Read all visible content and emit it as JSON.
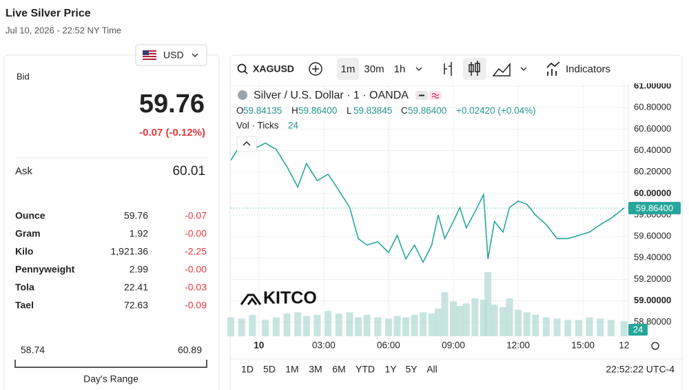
{
  "header": {
    "title": "Live Silver Price",
    "timestamp": "Jul 10, 2026 - 22:52 NY Time"
  },
  "currency": "USD",
  "quote": {
    "bid_label": "Bid",
    "bid": "59.76",
    "change": "-0.07 (-0.12%)",
    "ask_label": "Ask",
    "ask": "60.01"
  },
  "units": {
    "rows": [
      [
        "Ounce",
        "59.76",
        "-0.07"
      ],
      [
        "Gram",
        "1.92",
        "-0.00"
      ],
      [
        "Kilo",
        "1,921.36",
        "-2.25"
      ],
      [
        "Pennyweight",
        "2.99",
        "-0.00"
      ],
      [
        "Tola",
        "22.41",
        "-0.03"
      ],
      [
        "Tael",
        "72.63",
        "-0.09"
      ]
    ]
  },
  "day_range": {
    "low": "58.74",
    "high": "60.89",
    "label": "Day's Range"
  },
  "toolbar": {
    "symbol": "XAGUSD",
    "intervals": [
      "1m",
      "30m",
      "1h"
    ],
    "indicators": "Indicators"
  },
  "ranges": [
    "1D",
    "5D",
    "1M",
    "3M",
    "6M",
    "YTD",
    "1Y",
    "5Y",
    "All"
  ],
  "clock": "22:52:22 UTC-4",
  "watermark": "KITCO",
  "chart_data": {
    "type": "line",
    "title": "Silver / U.S. Dollar · 1 · OANDA",
    "ohlc": [
      {
        "label": "O",
        "value": "59.84135"
      },
      {
        "label": "H",
        "value": "59.86400"
      },
      {
        "label": "L",
        "value": "59.83845"
      },
      {
        "label": "C",
        "value": "59.86400"
      }
    ],
    "change": "+0.02420 (+0.04%)",
    "volume_title": "Vol · Ticks",
    "last_label": "59.86400",
    "x": [
      -1.3,
      -0.8,
      -0.3,
      0.3,
      0.8,
      1.3,
      1.8,
      2.2,
      2.7,
      3.2,
      3.7,
      4.2,
      4.6,
      5.0,
      5.5,
      6.0,
      6.4,
      6.8,
      7.2,
      7.6,
      8.0,
      8.3,
      8.6,
      9.0,
      9.3,
      9.6,
      10.0,
      10.4,
      10.6,
      10.9,
      11.3,
      11.6,
      12.0,
      12.4,
      12.8,
      13.3,
      13.8,
      14.3,
      14.8,
      15.3,
      15.8,
      16.3,
      16.9
    ],
    "series": [
      {
        "color": "#26a69a",
        "values": [
          60.31,
          60.47,
          60.41,
          60.47,
          60.41,
          60.25,
          60.06,
          60.28,
          60.12,
          60.18,
          60.03,
          59.87,
          59.58,
          59.52,
          59.55,
          59.45,
          59.61,
          59.39,
          59.52,
          59.36,
          59.52,
          59.8,
          59.58,
          59.74,
          59.87,
          59.68,
          59.83,
          59.99,
          59.39,
          59.74,
          59.64,
          59.87,
          59.93,
          59.9,
          59.8,
          59.71,
          59.58,
          59.58,
          59.61,
          59.64,
          59.71,
          59.77,
          59.864
        ]
      },
      {
        "axis": "y2",
        "color": "#b9ddd8",
        "values": [
          30,
          28,
          34,
          26,
          30,
          36,
          38,
          32,
          34,
          40,
          36,
          38,
          30,
          34,
          30,
          28,
          32,
          30,
          34,
          38,
          36,
          44,
          70,
          55,
          48,
          52,
          60,
          58,
          102,
          50,
          46,
          60,
          42,
          38,
          34,
          30,
          28,
          26,
          26,
          30,
          28,
          26,
          24
        ]
      }
    ],
    "xlim": [
      -1.3,
      17.1
    ],
    "xticks": [
      {
        "value": 0,
        "label": "10"
      },
      {
        "value": 3,
        "label": "03:00"
      },
      {
        "value": 6,
        "label": "06:00"
      },
      {
        "value": 9,
        "label": "09:00"
      },
      {
        "value": 12,
        "label": "12:00"
      },
      {
        "value": 15,
        "label": "15:00"
      },
      {
        "value": 16.9,
        "label": "12"
      }
    ],
    "ylim": [
      58.67,
      61.02
    ],
    "yticks": [
      {
        "value": 58.8,
        "label": "58.80000"
      },
      {
        "value": 59,
        "label": "59.00000"
      },
      {
        "value": 59.2,
        "label": "59.20000"
      },
      {
        "value": 59.4,
        "label": "59.40000"
      },
      {
        "value": 59.6,
        "label": "59.60000"
      },
      {
        "value": 59.8,
        "label": "59.80000"
      },
      {
        "value": 60,
        "label": "60.00000"
      },
      {
        "value": 60.2,
        "label": "60.20000"
      },
      {
        "value": 60.4,
        "label": "60.40000"
      },
      {
        "value": 60.6,
        "label": "60.60000"
      },
      {
        "value": 60.8,
        "label": "60.80000"
      },
      {
        "value": 61,
        "label": "61.00000"
      }
    ],
    "y2lim": [
      0,
      400
    ],
    "grid": true
  }
}
